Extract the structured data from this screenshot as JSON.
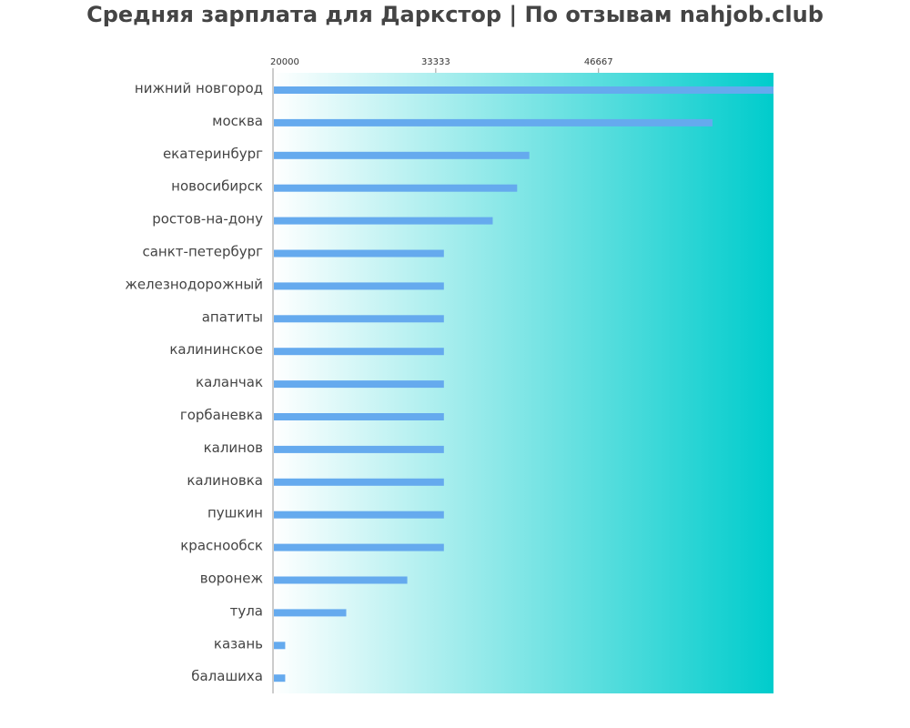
{
  "chart_data": {
    "type": "bar",
    "orientation": "horizontal",
    "title": "Средняя зарплата для Даркстор | По отзывам nahjob.club",
    "categories": [
      "нижний новгород",
      "москва",
      "екатеринбург",
      "новосибирск",
      "ростов-на-дону",
      "санкт-петербург",
      "железнодорожный",
      "апатиты",
      "калининское",
      "каланчак",
      "горбаневка",
      "калинов",
      "калиновка",
      "пушкин",
      "краснообск",
      "воронеж",
      "тула",
      "казань",
      "балашиха"
    ],
    "values": [
      61000,
      56000,
      41000,
      40000,
      38000,
      34000,
      34000,
      34000,
      34000,
      34000,
      34000,
      34000,
      34000,
      34000,
      34000,
      31000,
      26000,
      21000,
      21000
    ],
    "x_ticks": [
      20000,
      33333,
      46667
    ],
    "x_tick_labels": [
      "20000",
      "33333",
      "46667"
    ],
    "xlim": [
      20000,
      61000
    ],
    "xlabel": "",
    "ylabel": "",
    "grid": false,
    "legend": "none",
    "colors": {
      "bar": "#65aaee",
      "background_start": "#ffffff",
      "background_end": "#00cccc",
      "title": "#444444",
      "label": "#444444",
      "axis": "#999999"
    }
  }
}
